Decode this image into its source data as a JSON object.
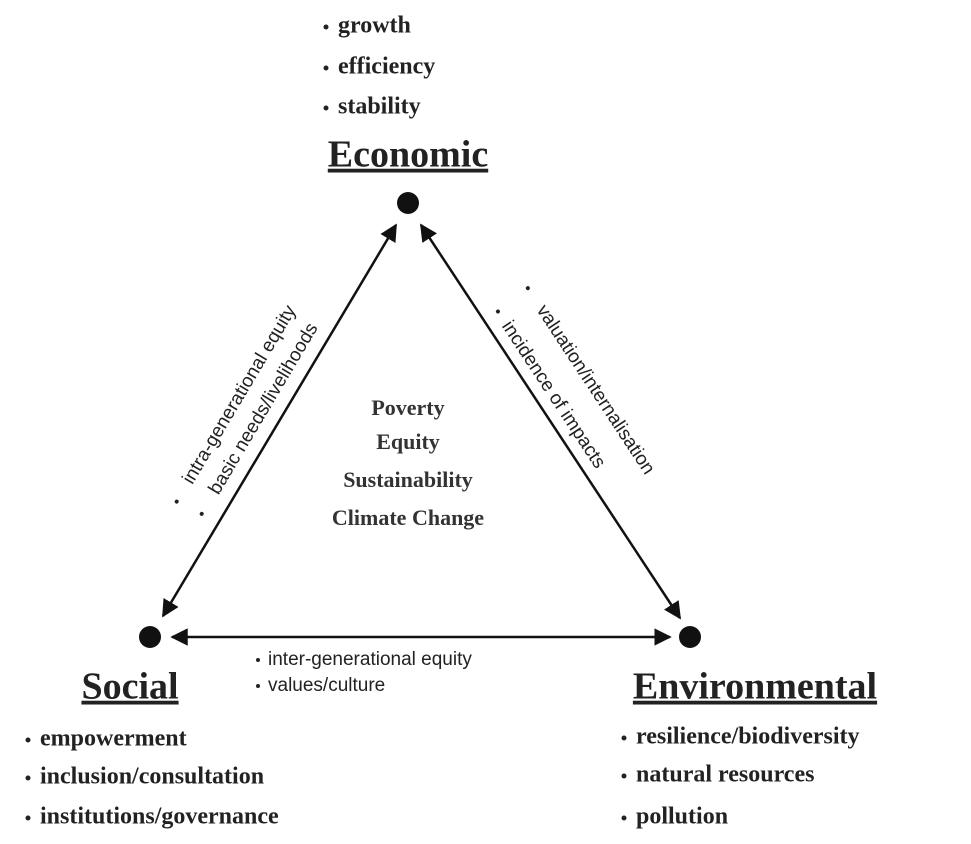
{
  "nodes": [
    {
      "label": "Economic",
      "items": [
        "growth",
        "efficiency",
        "stability"
      ]
    },
    {
      "label": "Social",
      "items": [
        "empowerment",
        "inclusion/consultation",
        "institutions/governance"
      ]
    },
    {
      "label": "Environmental",
      "items": [
        "resilience/biodiversity",
        "natural resources",
        "pollution"
      ]
    }
  ],
  "edges": [
    {
      "labels": [
        "intra-generational equity",
        "basic needs/livelihoods"
      ]
    },
    {
      "labels": [
        "valuation/internalisation",
        "incidence of impacts"
      ]
    },
    {
      "labels": [
        "inter-generational equity",
        "values/culture"
      ]
    }
  ],
  "center": [
    "Poverty",
    "Equity",
    "Sustainability",
    "Climate Change"
  ]
}
